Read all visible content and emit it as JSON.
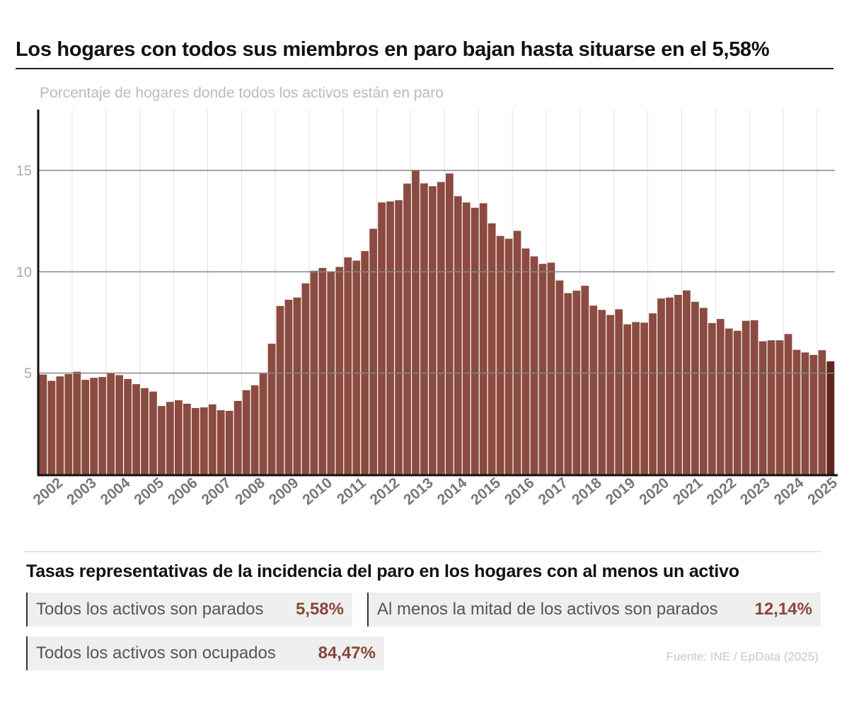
{
  "title": "Los hogares con todos sus miembros en paro bajan hasta situarse en el 5,58%",
  "subtitle": "Porcentaje de hogares donde todos los activos están en paro",
  "colors": {
    "bar": "#8b4b40",
    "bar_latest": "#5c251f",
    "accent_value": "#8b463c"
  },
  "chart_data": {
    "type": "bar",
    "title": "Los hogares con todos sus miembros en paro bajan hasta situarse en el 5,58%",
    "ylabel": "Porcentaje de hogares donde todos los activos están en paro",
    "ylim": [
      0,
      18
    ],
    "yticks": [
      5,
      10,
      15
    ],
    "grid": true,
    "xtick_labels": [
      "2002",
      "2003",
      "2004",
      "2005",
      "2006",
      "2007",
      "2008",
      "2009",
      "2010",
      "2011",
      "2012",
      "2013",
      "2014",
      "2015",
      "2016",
      "2017",
      "2018",
      "2019",
      "2020",
      "2021",
      "2022",
      "2023",
      "2024",
      "2025"
    ],
    "values": [
      4.93,
      4.62,
      4.84,
      4.95,
      5.07,
      4.67,
      4.77,
      4.81,
      4.98,
      4.9,
      4.71,
      4.46,
      4.26,
      4.09,
      3.38,
      3.58,
      3.66,
      3.49,
      3.28,
      3.31,
      3.46,
      3.17,
      3.14,
      3.63,
      4.16,
      4.4,
      4.98,
      6.45,
      8.31,
      8.62,
      8.73,
      9.43,
      10.05,
      10.19,
      10.02,
      10.24,
      10.71,
      10.55,
      11.02,
      12.12,
      13.42,
      13.47,
      13.53,
      14.35,
      15.03,
      14.36,
      14.22,
      14.43,
      14.85,
      13.73,
      13.42,
      13.16,
      13.38,
      12.39,
      11.77,
      11.63,
      12.02,
      11.15,
      10.76,
      10.39,
      10.45,
      9.57,
      8.95,
      9.07,
      9.31,
      8.33,
      8.12,
      7.87,
      8.15,
      7.41,
      7.52,
      7.49,
      7.95,
      8.68,
      8.73,
      8.86,
      9.08,
      8.52,
      8.22,
      7.47,
      7.67,
      7.2,
      7.09,
      7.58,
      7.61,
      6.57,
      6.62,
      6.62,
      6.93,
      6.15,
      6.02,
      5.9,
      6.13,
      5.58
    ],
    "highlight_last": true
  },
  "summary": {
    "heading": "Tasas representativas de la incidencia del paro en los hogares con al menos un activo",
    "stats": [
      {
        "label": "Todos los activos son parados",
        "value": "5,58%"
      },
      {
        "label": "Al menos la mitad de los activos son parados",
        "value": "12,14%"
      },
      {
        "label": "Todos los activos son ocupados",
        "value": "84,47%"
      }
    ]
  },
  "source": "Fuente: INE / EpData (2025)"
}
